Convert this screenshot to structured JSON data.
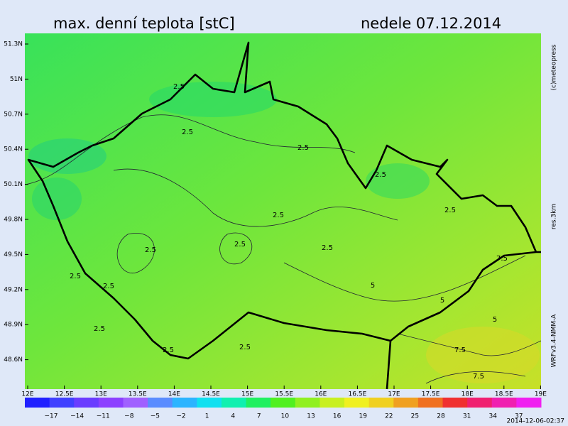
{
  "header": {
    "title": "max. denní teplota [stC]",
    "date": "nedele 07.12.2014"
  },
  "map": {
    "lat_labels": [
      "51.3N",
      "51N",
      "50.7N",
      "50.4N",
      "50.1N",
      "49.8N",
      "49.5N",
      "49.2N",
      "48.9N",
      "48.6N"
    ],
    "lon_labels": [
      "12E",
      "12.5E",
      "13E",
      "13.5E",
      "14E",
      "14.5E",
      "15E",
      "15.5E",
      "16E",
      "16.5E",
      "17E",
      "17.5E",
      "18E",
      "18.5E",
      "19E"
    ],
    "contour_labels": [
      "2.5",
      "2.5",
      "2.5",
      "2.5",
      "2.5",
      "2.5",
      "2.5",
      "2.5",
      "2.5",
      "2.5",
      "2.5",
      "2.5",
      "2.5",
      "2.5",
      "5",
      "5",
      "5",
      "7.5",
      "7.5",
      "7.5"
    ]
  },
  "side": {
    "copyright": "(c)meteopress",
    "resolution": "res.3km",
    "model": "WRFv3.4-NMM-A"
  },
  "colorbar": {
    "labels": [
      "−17",
      "−14",
      "−11",
      "−8",
      "−5",
      "−2",
      "1",
      "4",
      "7",
      "10",
      "13",
      "16",
      "19",
      "22",
      "25",
      "28",
      "31",
      "34",
      "37"
    ],
    "colors": [
      "#2020ff",
      "#4040ff",
      "#6a3cff",
      "#8c40ff",
      "#a060ff",
      "#5a8cff",
      "#2cb4ff",
      "#10e0f0",
      "#10f0b0",
      "#20f060",
      "#50f020",
      "#90f020",
      "#c8f020",
      "#f0f020",
      "#f0d020",
      "#f0a020",
      "#f07020",
      "#f03030",
      "#f02070",
      "#f020b0",
      "#f020f0"
    ]
  },
  "footer": {
    "timestamp": "2014-12-06-02:37"
  }
}
